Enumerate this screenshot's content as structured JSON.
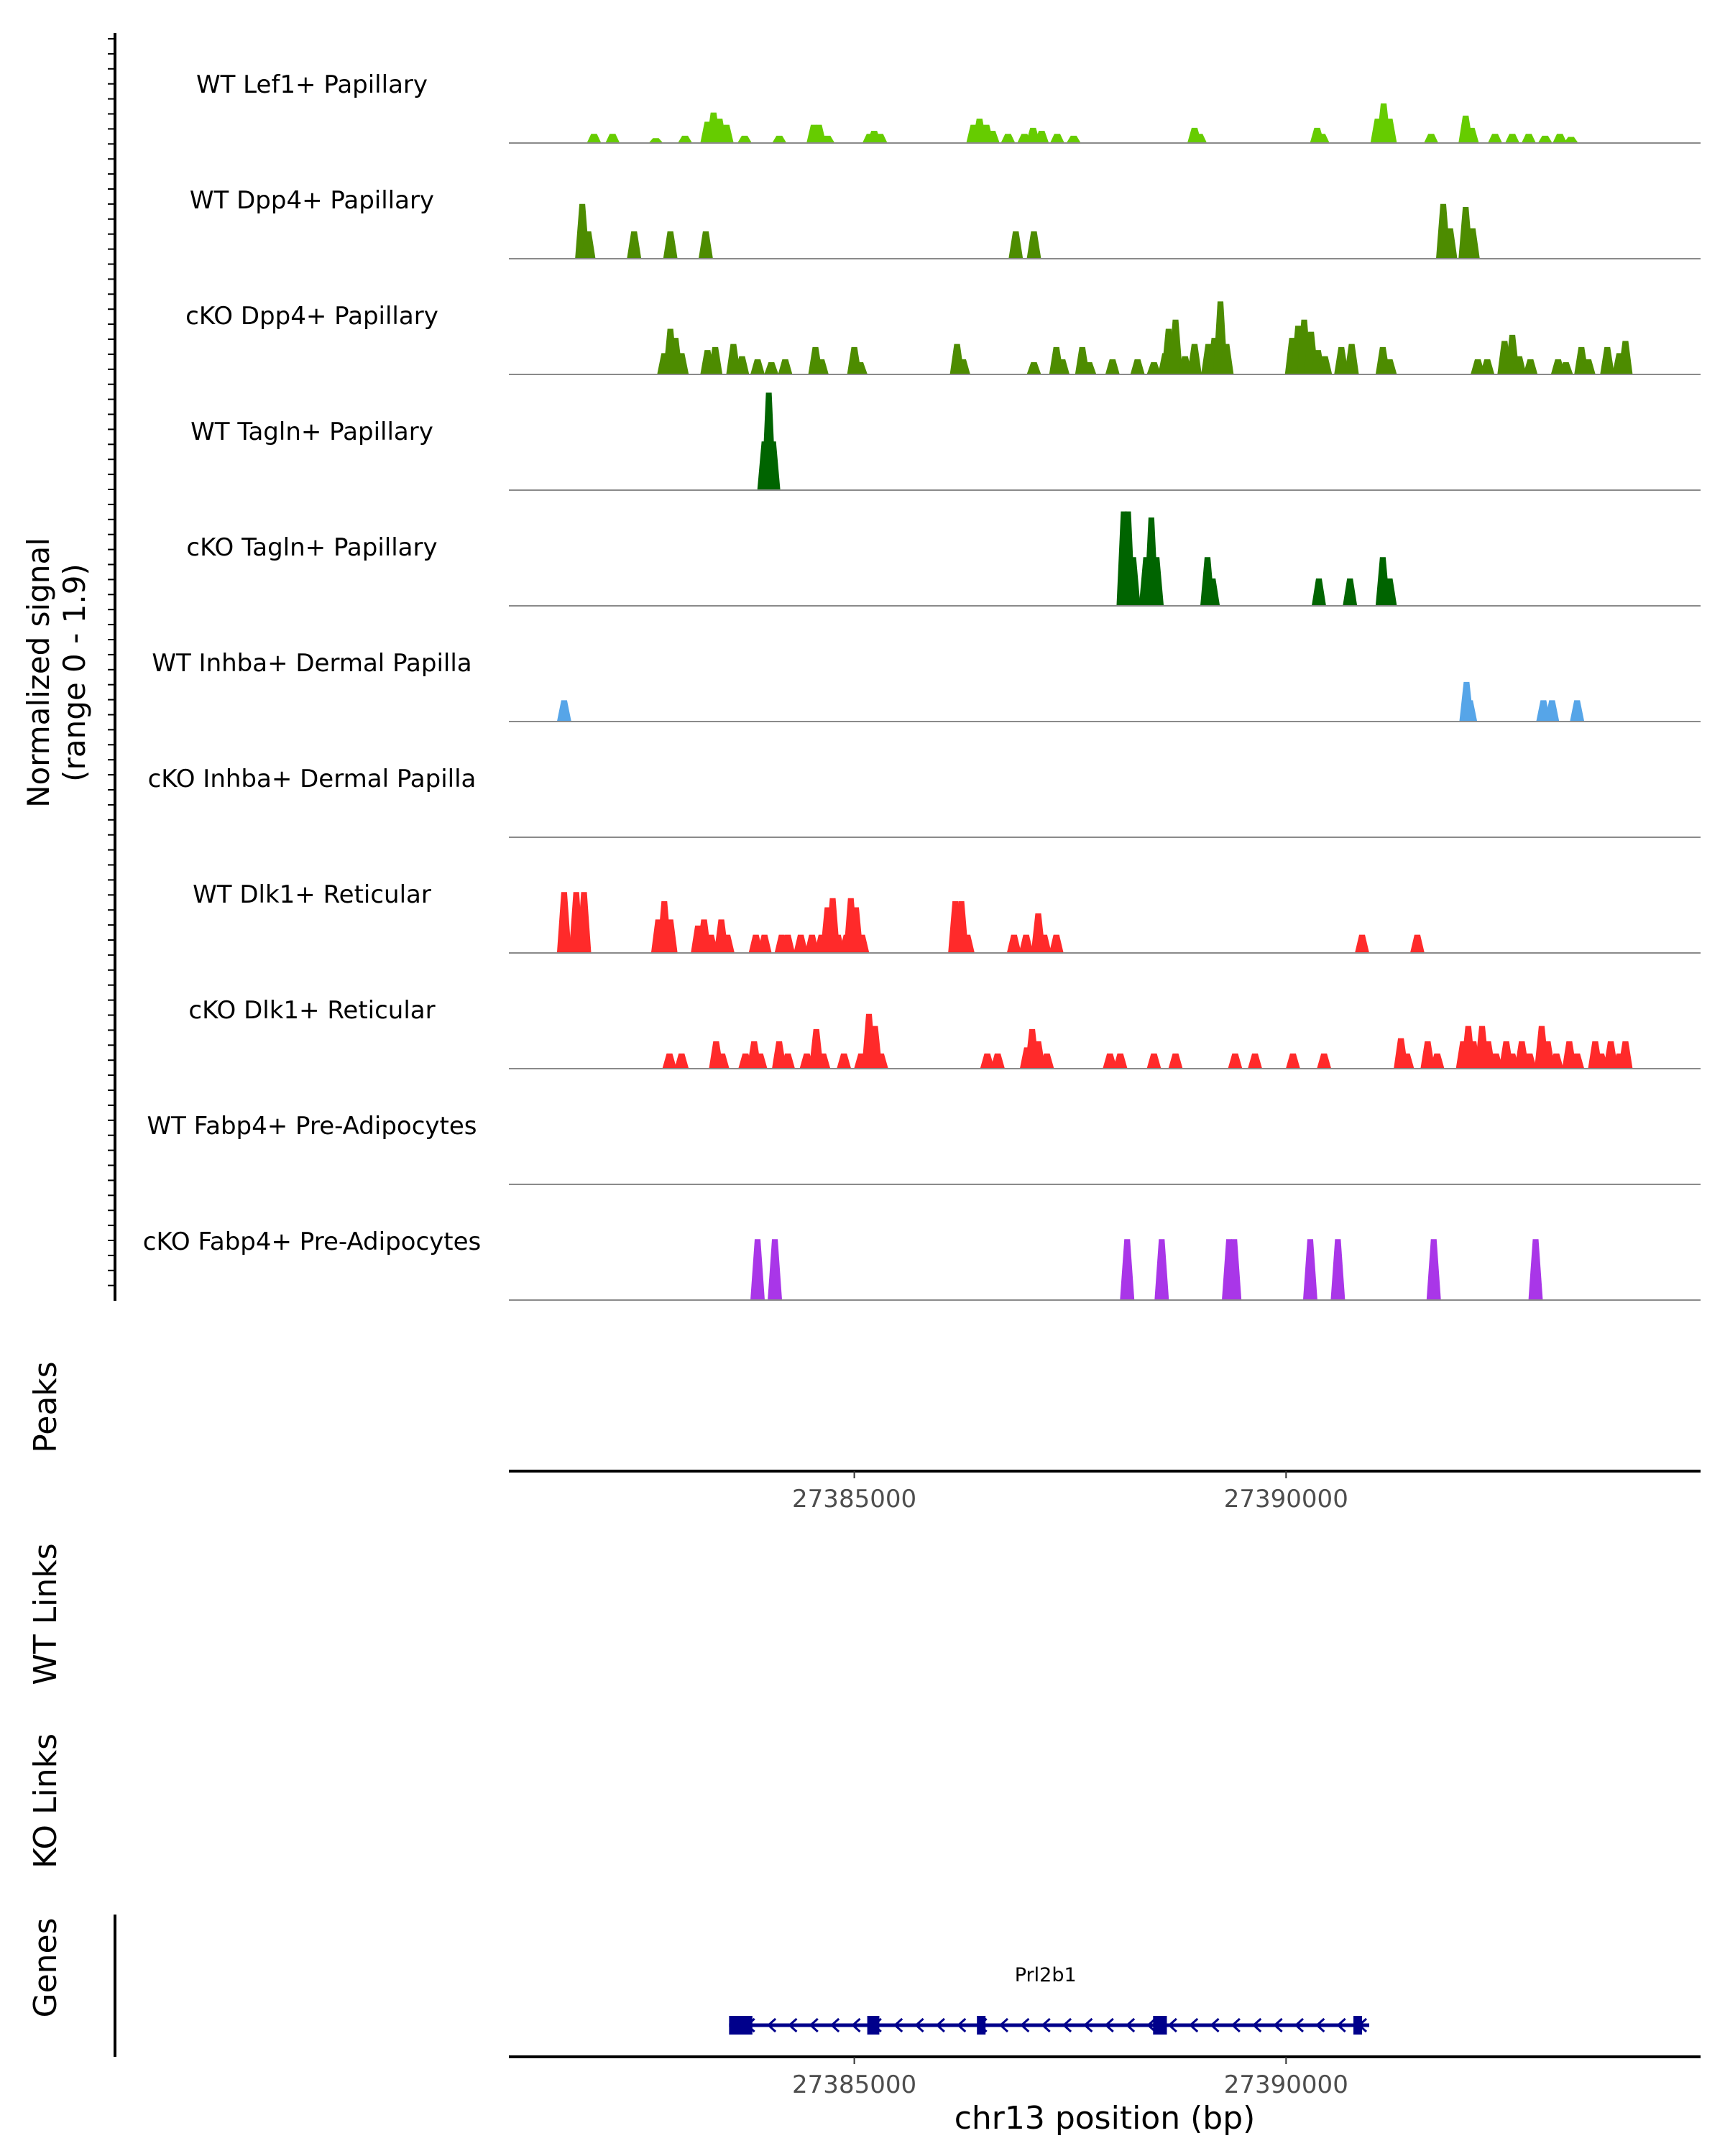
{
  "chart_data": {
    "type": "coverage-track",
    "chromosome": "chr13",
    "region": [
      27381000,
      27394800
    ],
    "xlabel": "chr13 position (bp)",
    "x_ticks": [
      27385000,
      27390000
    ],
    "x_tick_labels": [
      "27385000",
      "27390000"
    ],
    "coverage_ylabel_line1": "Normalized signal",
    "coverage_ylabel_line2": "(range 0 - 1.9)",
    "ylim": [
      0,
      1.9
    ],
    "tracks": [
      {
        "name": "WT Lef1+ Papillary",
        "color": "#66CC00",
        "peaks": [
          [
            27381986,
            0.15
          ],
          [
            27382201,
            0.15
          ],
          [
            27382702,
            0.08
          ],
          [
            27383040,
            0.12
          ],
          [
            27383300,
            0.35
          ],
          [
            27383370,
            0.5
          ],
          [
            27383440,
            0.4
          ],
          [
            27383520,
            0.3
          ],
          [
            27383730,
            0.12
          ],
          [
            27384132,
            0.12
          ],
          [
            27384530,
            0.3
          ],
          [
            27384590,
            0.3
          ],
          [
            27384690,
            0.12
          ],
          [
            27385177,
            0.15
          ],
          [
            27385230,
            0.2
          ],
          [
            27385300,
            0.15
          ],
          [
            27386380,
            0.3
          ],
          [
            27386450,
            0.4
          ],
          [
            27386530,
            0.3
          ],
          [
            27386600,
            0.2
          ],
          [
            27386780,
            0.15
          ],
          [
            27386970,
            0.15
          ],
          [
            27387070,
            0.25
          ],
          [
            27387170,
            0.2
          ],
          [
            27387350,
            0.15
          ],
          [
            27387540,
            0.12
          ],
          [
            27388940,
            0.25
          ],
          [
            27389000,
            0.15
          ],
          [
            27390360,
            0.25
          ],
          [
            27390420,
            0.15
          ],
          [
            27391060,
            0.4
          ],
          [
            27391130,
            0.65
          ],
          [
            27391200,
            0.4
          ],
          [
            27391680,
            0.15
          ],
          [
            27392080,
            0.45
          ],
          [
            27392150,
            0.25
          ],
          [
            27392420,
            0.15
          ],
          [
            27392620,
            0.15
          ],
          [
            27392810,
            0.15
          ],
          [
            27393000,
            0.12
          ],
          [
            27393170,
            0.15
          ],
          [
            27393300,
            0.1
          ]
        ]
      },
      {
        "name": "WT Dpp4+ Papillary",
        "color": "#4D8C00",
        "peaks": [
          [
            27381850,
            0.9
          ],
          [
            27381920,
            0.45
          ],
          [
            27382450,
            0.45
          ],
          [
            27382870,
            0.45
          ],
          [
            27383280,
            0.45
          ],
          [
            27386870,
            0.45
          ],
          [
            27387080,
            0.45
          ],
          [
            27391820,
            0.9
          ],
          [
            27391900,
            0.5
          ],
          [
            27392080,
            0.85
          ],
          [
            27392160,
            0.5
          ]
        ]
      },
      {
        "name": "cKO Dpp4+ Papillary",
        "color": "#4D8C00",
        "peaks": [
          [
            27382800,
            0.35
          ],
          [
            27382870,
            0.75
          ],
          [
            27382930,
            0.6
          ],
          [
            27383000,
            0.35
          ],
          [
            27383300,
            0.4
          ],
          [
            27383390,
            0.45
          ],
          [
            27383600,
            0.5
          ],
          [
            27383700,
            0.3
          ],
          [
            27383880,
            0.25
          ],
          [
            27384040,
            0.2
          ],
          [
            27384200,
            0.25
          ],
          [
            27384550,
            0.45
          ],
          [
            27384620,
            0.25
          ],
          [
            27385000,
            0.45
          ],
          [
            27385070,
            0.2
          ],
          [
            27386190,
            0.5
          ],
          [
            27386260,
            0.25
          ],
          [
            27387080,
            0.2
          ],
          [
            27387340,
            0.45
          ],
          [
            27387410,
            0.25
          ],
          [
            27387640,
            0.45
          ],
          [
            27387720,
            0.2
          ],
          [
            27387990,
            0.25
          ],
          [
            27388280,
            0.25
          ],
          [
            27388470,
            0.2
          ],
          [
            27388600,
            0.35
          ],
          [
            27388640,
            0.75
          ],
          [
            27388720,
            0.9
          ],
          [
            27388830,
            0.3
          ],
          [
            27388940,
            0.5
          ],
          [
            27389100,
            0.5
          ],
          [
            27389170,
            0.6
          ],
          [
            27389240,
            1.2
          ],
          [
            27389310,
            0.5
          ],
          [
            27390070,
            0.6
          ],
          [
            27390140,
            0.8
          ],
          [
            27390210,
            0.9
          ],
          [
            27390290,
            0.7
          ],
          [
            27390370,
            0.4
          ],
          [
            27390450,
            0.3
          ],
          [
            27390640,
            0.45
          ],
          [
            27390760,
            0.5
          ],
          [
            27391120,
            0.45
          ],
          [
            27391200,
            0.25
          ],
          [
            27392220,
            0.25
          ],
          [
            27392330,
            0.25
          ],
          [
            27392530,
            0.55
          ],
          [
            27392620,
            0.65
          ],
          [
            27392700,
            0.3
          ],
          [
            27392830,
            0.25
          ],
          [
            27393150,
            0.25
          ],
          [
            27393240,
            0.2
          ],
          [
            27393420,
            0.45
          ],
          [
            27393500,
            0.25
          ],
          [
            27393720,
            0.45
          ],
          [
            27393860,
            0.35
          ],
          [
            27393930,
            0.55
          ]
        ]
      },
      {
        "name": "WT Tagln+ Papillary",
        "color": "#006400",
        "peaks": [
          [
            27383960,
            0.8
          ],
          [
            27384010,
            1.6
          ],
          [
            27384060,
            0.8
          ]
        ]
      },
      {
        "name": "cKO Tagln+ Papillary",
        "color": "#006400",
        "peaks": [
          [
            27388120,
            1.55
          ],
          [
            27388170,
            1.55
          ],
          [
            27388230,
            0.8
          ],
          [
            27388380,
            0.8
          ],
          [
            27388440,
            1.45
          ],
          [
            27388500,
            0.8
          ],
          [
            27389090,
            0.8
          ],
          [
            27389150,
            0.45
          ],
          [
            27390380,
            0.45
          ],
          [
            27390740,
            0.45
          ],
          [
            27391120,
            0.8
          ],
          [
            27391200,
            0.45
          ]
        ]
      },
      {
        "name": "WT Inhba+ Dermal Papilla",
        "color": "#56A5E8",
        "peaks": [
          [
            27381640,
            0.35
          ],
          [
            27392090,
            0.65
          ],
          [
            27392130,
            0.35
          ],
          [
            27392980,
            0.35
          ],
          [
            27393080,
            0.35
          ],
          [
            27393370,
            0.35
          ]
        ]
      },
      {
        "name": "cKO Inhba+ Dermal Papilla",
        "color": "#56A5E8",
        "peaks": []
      },
      {
        "name": "WT Dlk1+ Reticular",
        "color": "#FF2A2A",
        "peaks": [
          [
            27381640,
            1.0
          ],
          [
            27381780,
            1.0
          ],
          [
            27381870,
            1.0
          ],
          [
            27382730,
            0.55
          ],
          [
            27382800,
            0.85
          ],
          [
            27382870,
            0.55
          ],
          [
            27383190,
            0.45
          ],
          [
            27383260,
            0.55
          ],
          [
            27383340,
            0.3
          ],
          [
            27383460,
            0.55
          ],
          [
            27383530,
            0.3
          ],
          [
            27383860,
            0.3
          ],
          [
            27383960,
            0.3
          ],
          [
            27384160,
            0.3
          ],
          [
            27384230,
            0.3
          ],
          [
            27384380,
            0.3
          ],
          [
            27384510,
            0.3
          ],
          [
            27384620,
            0.3
          ],
          [
            27384690,
            0.75
          ],
          [
            27384750,
            0.9
          ],
          [
            27384810,
            0.3
          ],
          [
            27384910,
            0.3
          ],
          [
            27384960,
            0.9
          ],
          [
            27385020,
            0.75
          ],
          [
            27385090,
            0.3
          ],
          [
            27386170,
            0.85
          ],
          [
            27386240,
            0.85
          ],
          [
            27386310,
            0.3
          ],
          [
            27386850,
            0.3
          ],
          [
            27386990,
            0.3
          ],
          [
            27387130,
            0.65
          ],
          [
            27387200,
            0.3
          ],
          [
            27387340,
            0.3
          ],
          [
            27390880,
            0.3
          ],
          [
            27391520,
            0.3
          ]
        ]
      },
      {
        "name": "cKO Dlk1+ Reticular",
        "color": "#FF2A2A",
        "peaks": [
          [
            27382860,
            0.25
          ],
          [
            27383000,
            0.25
          ],
          [
            27383400,
            0.45
          ],
          [
            27383470,
            0.25
          ],
          [
            27383740,
            0.25
          ],
          [
            27383840,
            0.45
          ],
          [
            27383910,
            0.25
          ],
          [
            27384130,
            0.45
          ],
          [
            27384230,
            0.25
          ],
          [
            27384450,
            0.25
          ],
          [
            27384560,
            0.65
          ],
          [
            27384640,
            0.25
          ],
          [
            27384880,
            0.25
          ],
          [
            27385080,
            0.25
          ],
          [
            27385170,
            0.9
          ],
          [
            27385240,
            0.7
          ],
          [
            27385310,
            0.25
          ],
          [
            27386540,
            0.25
          ],
          [
            27386660,
            0.25
          ],
          [
            27387000,
            0.35
          ],
          [
            27387060,
            0.65
          ],
          [
            27387130,
            0.45
          ],
          [
            27387230,
            0.25
          ],
          [
            27387960,
            0.25
          ],
          [
            27388080,
            0.25
          ],
          [
            27388470,
            0.25
          ],
          [
            27388720,
            0.25
          ],
          [
            27389410,
            0.25
          ],
          [
            27389640,
            0.25
          ],
          [
            27390080,
            0.25
          ],
          [
            27390440,
            0.25
          ],
          [
            27391330,
            0.5
          ],
          [
            27391400,
            0.25
          ],
          [
            27391640,
            0.45
          ],
          [
            27391750,
            0.25
          ],
          [
            27392050,
            0.45
          ],
          [
            27392110,
            0.7
          ],
          [
            27392170,
            0.45
          ],
          [
            27392270,
            0.7
          ],
          [
            27392340,
            0.45
          ],
          [
            27392430,
            0.25
          ],
          [
            27392550,
            0.45
          ],
          [
            27392620,
            0.25
          ],
          [
            27392730,
            0.45
          ],
          [
            27392820,
            0.25
          ],
          [
            27392960,
            0.7
          ],
          [
            27393030,
            0.45
          ],
          [
            27393130,
            0.25
          ],
          [
            27393280,
            0.45
          ],
          [
            27393370,
            0.25
          ],
          [
            27393580,
            0.45
          ],
          [
            27393650,
            0.25
          ],
          [
            27393760,
            0.45
          ],
          [
            27393860,
            0.25
          ],
          [
            27393930,
            0.45
          ]
        ]
      },
      {
        "name": "WT Fabp4+ Pre-Adipocytes",
        "color": "#A936E8",
        "peaks": []
      },
      {
        "name": "cKO Fabp4+ Pre-Adipocytes",
        "color": "#A936E8",
        "peaks": [
          [
            27383880,
            1.0
          ],
          [
            27384080,
            1.0
          ],
          [
            27388160,
            1.0
          ],
          [
            27388560,
            1.0
          ],
          [
            27389340,
            1.0
          ],
          [
            27389400,
            1.0
          ],
          [
            27390280,
            1.0
          ],
          [
            27390600,
            1.0
          ],
          [
            27391710,
            1.0
          ],
          [
            27392890,
            1.0
          ]
        ]
      }
    ],
    "panels": {
      "peaks_label": "Peaks",
      "wt_links_label": "WT Links",
      "ko_links_label": "KO Links",
      "genes_label": "Genes"
    },
    "gene": {
      "name": "Prl2b1",
      "color": "#00008B",
      "start": 27383550,
      "end": 27390880,
      "strand": "-",
      "exons": [
        [
          27383550,
          27383820
        ],
        [
          27385150,
          27385290
        ],
        [
          27386420,
          27386520
        ],
        [
          27388460,
          27388620
        ],
        [
          27390780,
          27390880
        ]
      ]
    }
  }
}
